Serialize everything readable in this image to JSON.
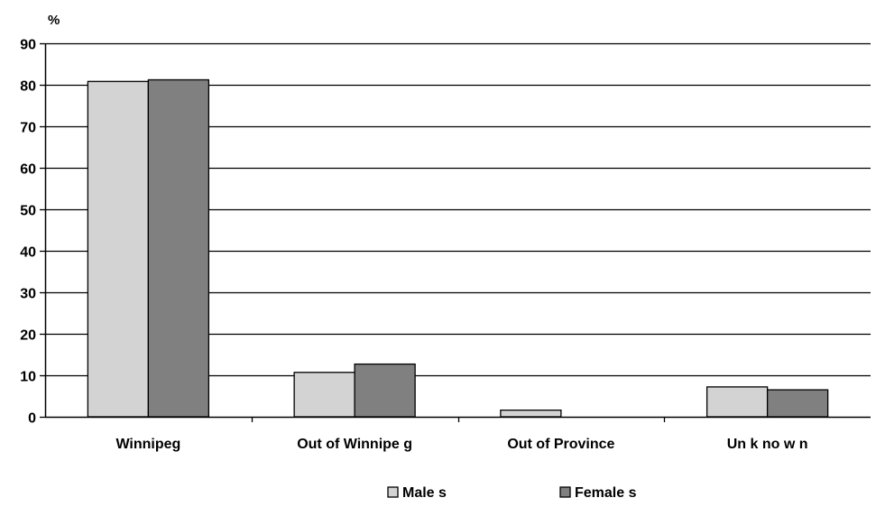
{
  "chart_data": {
    "type": "bar",
    "ylabel": "%",
    "xlabel": "",
    "title": "",
    "ylim": [
      0,
      90
    ],
    "yticks": [
      0,
      10,
      20,
      30,
      40,
      50,
      60,
      70,
      80,
      90
    ],
    "grid": true,
    "legend_position": "bottom",
    "categories": [
      "Winnipeg",
      "Out of Winnipe g",
      "Out of Province",
      "Un k no w n"
    ],
    "series": [
      {
        "name": "Male s",
        "color": "#d3d3d3",
        "values": [
          80.8,
          10.7,
          1.6,
          7.2
        ]
      },
      {
        "name": "Female s",
        "color": "#808080",
        "values": [
          81.2,
          12.7,
          0,
          6.5
        ]
      }
    ]
  }
}
